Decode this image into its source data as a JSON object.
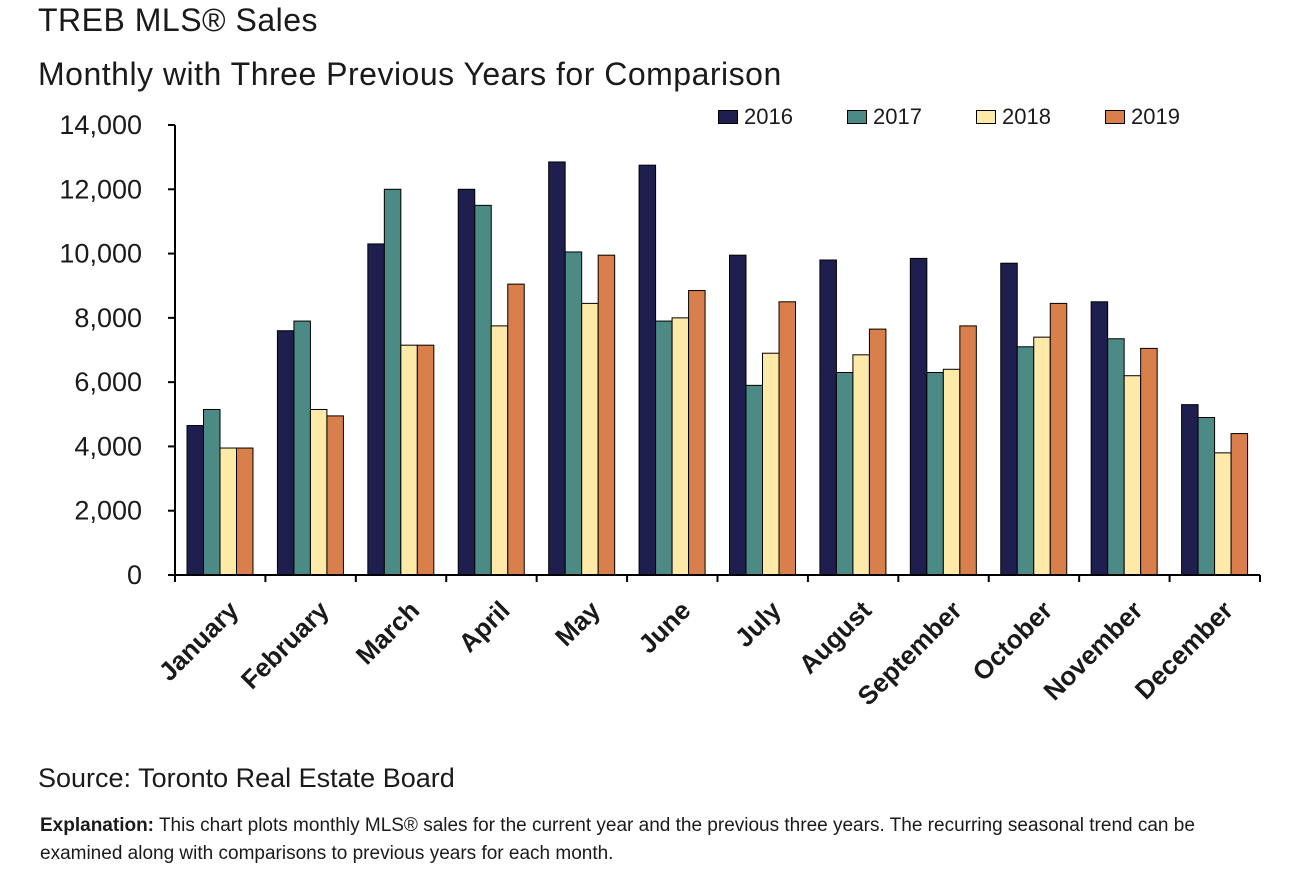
{
  "title_line1": "TREB MLS® Sales",
  "title_line2": "Monthly  with Three Previous Years for Comparison",
  "source": "Source: Toronto Real Estate Board",
  "explanation_label": "Explanation:",
  "explanation_text": " This chart plots monthly MLS® sales for the current year and the previous three years. The recurring seasonal trend can be examined along with comparisons to previous years for each month.",
  "chart_data": {
    "type": "bar",
    "title": "TREB MLS® Sales",
    "subtitle": "Monthly  with Three Previous Years for Comparison",
    "xlabel": "",
    "ylabel": "",
    "ylim": [
      0,
      14000
    ],
    "yticks": [
      0,
      2000,
      4000,
      6000,
      8000,
      10000,
      12000,
      14000
    ],
    "ytick_labels": [
      "0",
      "2,000",
      "4,000",
      "6,000",
      "8,000",
      "10,000",
      "12,000",
      "14,000"
    ],
    "grid": false,
    "legend_position": "top-right",
    "categories": [
      "January",
      "February",
      "March",
      "April",
      "May",
      "June",
      "July",
      "August",
      "September",
      "October",
      "November",
      "December"
    ],
    "series": [
      {
        "name": "2016",
        "color": "#1f1f4f",
        "values": [
          4650,
          7600,
          10300,
          12000,
          12850,
          12750,
          9950,
          9800,
          9850,
          9700,
          8500,
          5300
        ]
      },
      {
        "name": "2017",
        "color": "#4c8a86",
        "values": [
          5150,
          7900,
          12000,
          11500,
          10050,
          7900,
          5900,
          6300,
          6300,
          7100,
          7350,
          4900
        ]
      },
      {
        "name": "2018",
        "color": "#fde9a8",
        "values": [
          3950,
          5150,
          7150,
          7750,
          8450,
          8000,
          6900,
          6850,
          6400,
          7400,
          6200,
          3800
        ]
      },
      {
        "name": "2019",
        "color": "#d87f4c",
        "values": [
          3950,
          4950,
          7150,
          9050,
          9950,
          8850,
          8500,
          7650,
          7750,
          8450,
          7050,
          4400
        ]
      }
    ]
  }
}
